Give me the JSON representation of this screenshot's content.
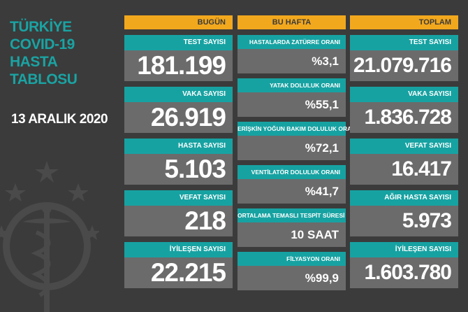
{
  "title_lines": [
    "TÜRKİYE",
    "COVID-19",
    "HASTA",
    "TABLOSU"
  ],
  "date": "13 ARALIK 2020",
  "headers": {
    "today": "BUGÜN",
    "week": "BU HAFTA",
    "total": "TOPLAM"
  },
  "today": [
    {
      "label": "TEST SAYISI",
      "value": "181.199"
    },
    {
      "label": "VAKA SAYISI",
      "value": "26.919"
    },
    {
      "label": "HASTA SAYISI",
      "value": "5.103"
    },
    {
      "label": "VEFAT SAYISI",
      "value": "218"
    },
    {
      "label": "İYİLEŞEN SAYISI",
      "value": "22.215"
    }
  ],
  "week": [
    {
      "label": "HASTALARDA ZATÜRRE ORANI",
      "value": "%3,1"
    },
    {
      "label": "YATAK DOLULUK ORANI",
      "value": "%55,1"
    },
    {
      "label": "ERİŞKİN YOĞUN BAKIM DOLULUK ORANI",
      "value": "%72,1"
    },
    {
      "label": "VENTİLATÖR DOLULUK ORANI",
      "value": "%41,7"
    },
    {
      "label": "ORTALAMA TEMASLI TESPİT SÜRESİ",
      "value": "10 SAAT"
    },
    {
      "label": "FİLYASYON ORANI",
      "value": "%99,9"
    }
  ],
  "total": [
    {
      "label": "TEST SAYISI",
      "value": "21.079.716"
    },
    {
      "label": "VAKA SAYISI",
      "value": "1.836.728"
    },
    {
      "label": "VEFAT SAYISI",
      "value": "16.417"
    },
    {
      "label": "AĞIR HASTA SAYISI",
      "value": "5.973"
    },
    {
      "label": "İYİLEŞEN SAYISI",
      "value": "1.603.780"
    }
  ],
  "colors": {
    "background": "#3b3b3b",
    "teal": "#17a2a2",
    "orange": "#f2a81d",
    "value_box": "#6b6b6b"
  }
}
